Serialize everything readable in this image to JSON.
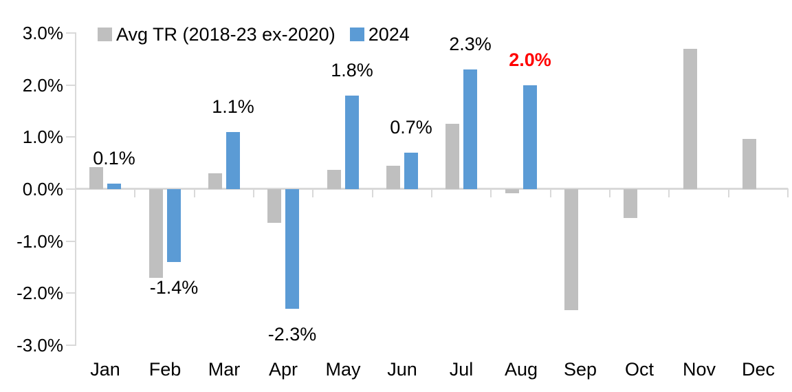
{
  "chart_data": {
    "type": "bar",
    "title": "",
    "xlabel": "",
    "ylabel": "",
    "categories": [
      "Jan",
      "Feb",
      "Mar",
      "Apr",
      "May",
      "Jun",
      "Jul",
      "Aug",
      "Sep",
      "Oct",
      "Nov",
      "Dec"
    ],
    "y_tick_labels": [
      "3.0%",
      "2.0%",
      "1.0%",
      "0.0%",
      "-1.0%",
      "-2.0%",
      "-3.0%"
    ],
    "y_tick_values": [
      3,
      2,
      1,
      0,
      -1,
      -2,
      -3
    ],
    "ylim": [
      -3,
      3
    ],
    "y_unit": "%",
    "grid": "off",
    "legend_position": "top",
    "series": [
      {
        "name": "Avg TR (2018-23 ex-2020)",
        "color": "#bfbfbf",
        "values": [
          0.42,
          -1.7,
          0.3,
          -0.65,
          0.37,
          0.45,
          1.25,
          -0.08,
          -2.33,
          -0.55,
          2.7,
          0.97
        ]
      },
      {
        "name": "2024",
        "color": "#5b9bd5",
        "values": [
          0.1,
          -1.4,
          1.1,
          -2.3,
          1.8,
          0.7,
          2.3,
          2.0
        ],
        "labels": [
          "0.1%",
          "-1.4%",
          "1.1%",
          "-2.3%",
          "1.8%",
          "0.7%",
          "2.3%",
          "2.0%"
        ],
        "label_colors": [
          "#000000",
          "#000000",
          "#000000",
          "#000000",
          "#000000",
          "#000000",
          "#000000",
          "#ff0000"
        ],
        "highlight_index": 7,
        "highlight_color": "#ff0000"
      }
    ],
    "axis_color": "#d9d9d9",
    "text_color": "#000000"
  }
}
